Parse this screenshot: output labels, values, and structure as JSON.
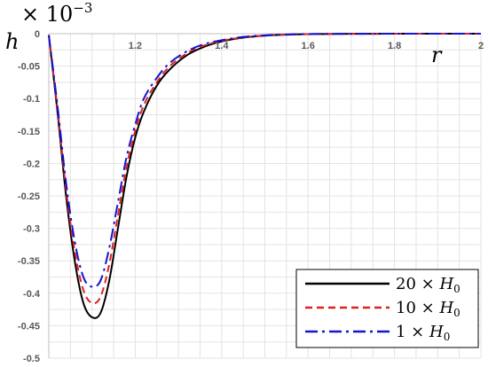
{
  "chart_data": {
    "type": "line",
    "xlabel": "r",
    "ylabel": "h",
    "y_scale_label": {
      "base": "× 10",
      "exponent": "−3"
    },
    "xlim": [
      1.0,
      2.0
    ],
    "ylim": [
      -0.5,
      0
    ],
    "x_ticks": [
      {
        "value": 1.2,
        "label": "1.2"
      },
      {
        "value": 1.4,
        "label": "1.4"
      },
      {
        "value": 1.6,
        "label": "1.6"
      },
      {
        "value": 1.8,
        "label": "1.8"
      },
      {
        "value": 2.0,
        "label": "2"
      }
    ],
    "y_ticks": [
      {
        "value": 0,
        "label": "0"
      },
      {
        "value": -0.05,
        "label": "-0.05"
      },
      {
        "value": -0.1,
        "label": "-0.1"
      },
      {
        "value": -0.15,
        "label": "-0.15"
      },
      {
        "value": -0.2,
        "label": "-0.2"
      },
      {
        "value": -0.25,
        "label": "-0.25"
      },
      {
        "value": -0.3,
        "label": "-0.3"
      },
      {
        "value": -0.35,
        "label": "-0.35"
      },
      {
        "value": -0.4,
        "label": "-0.4"
      },
      {
        "value": -0.45,
        "label": "-0.45"
      },
      {
        "value": -0.5,
        "label": "-0.5"
      }
    ],
    "grid": true,
    "legend_position": "bottom-right",
    "series": [
      {
        "name": "20 × H0",
        "legend": {
          "coef": "20 × ",
          "var": "H",
          "sub": "0"
        },
        "color": "#000000",
        "style": "solid",
        "x": [
          1.0,
          1.02,
          1.04,
          1.06,
          1.08,
          1.1,
          1.12,
          1.14,
          1.16,
          1.18,
          1.2,
          1.22,
          1.25,
          1.28,
          1.32,
          1.36,
          1.4,
          1.45,
          1.5,
          1.55,
          1.6,
          1.7,
          1.8,
          1.9,
          2.0
        ],
        "y": [
          -0.002,
          -0.12,
          -0.25,
          -0.35,
          -0.415,
          -0.437,
          -0.43,
          -0.38,
          -0.3,
          -0.22,
          -0.16,
          -0.12,
          -0.08,
          -0.055,
          -0.033,
          -0.02,
          -0.012,
          -0.006,
          -0.003,
          -0.0015,
          -0.0007,
          -0.0002,
          -5e-05,
          0,
          0
        ]
      },
      {
        "name": "10 × H0",
        "legend": {
          "coef": "10 × ",
          "var": "H",
          "sub": "0"
        },
        "color": "#e02020",
        "style": "dashed",
        "x": [
          1.0,
          1.02,
          1.04,
          1.06,
          1.08,
          1.1,
          1.12,
          1.14,
          1.16,
          1.18,
          1.2,
          1.22,
          1.25,
          1.28,
          1.32,
          1.36,
          1.4,
          1.45,
          1.5,
          1.55,
          1.6,
          1.7,
          1.8,
          1.9,
          2.0
        ],
        "y": [
          -0.002,
          -0.115,
          -0.24,
          -0.335,
          -0.395,
          -0.415,
          -0.405,
          -0.355,
          -0.28,
          -0.205,
          -0.15,
          -0.11,
          -0.075,
          -0.05,
          -0.03,
          -0.018,
          -0.011,
          -0.0055,
          -0.0028,
          -0.0014,
          -0.0006,
          -0.0002,
          -5e-05,
          0,
          0
        ]
      },
      {
        "name": "1 × H0",
        "legend": {
          "coef": "1 × ",
          "var": "H",
          "sub": "0"
        },
        "color": "#1414d2",
        "style": "dashdot",
        "x": [
          1.0,
          1.02,
          1.04,
          1.06,
          1.08,
          1.1,
          1.12,
          1.14,
          1.16,
          1.18,
          1.2,
          1.22,
          1.25,
          1.28,
          1.32,
          1.36,
          1.4,
          1.45,
          1.5,
          1.55,
          1.6,
          1.7,
          1.8,
          1.9,
          2.0
        ],
        "y": [
          -0.002,
          -0.11,
          -0.23,
          -0.32,
          -0.375,
          -0.39,
          -0.38,
          -0.33,
          -0.26,
          -0.19,
          -0.14,
          -0.1,
          -0.068,
          -0.045,
          -0.027,
          -0.016,
          -0.01,
          -0.005,
          -0.0025,
          -0.0012,
          -0.0005,
          -0.00015,
          -4e-05,
          0,
          0
        ]
      }
    ]
  }
}
